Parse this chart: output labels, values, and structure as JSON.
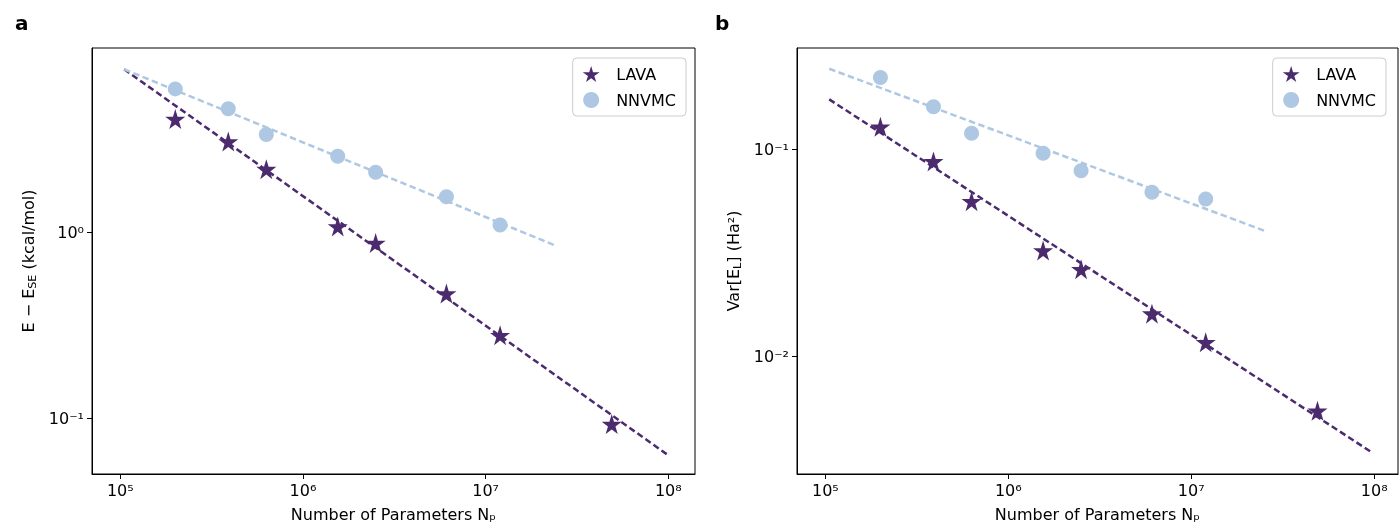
{
  "chart_data": [
    {
      "type": "scatter",
      "title": "a",
      "xlabel": "Number of Parameters Nₚ",
      "ylabel": "E − E$_{SE}$ (kcal/mol)",
      "log": "xy",
      "grid": false,
      "legend": "top right",
      "xlim": [
        70000,
        140000000
      ],
      "ylim": [
        0.05,
        9.9
      ],
      "xticks": [
        {
          "value": 100000,
          "label": "10⁵"
        },
        {
          "value": 1000000,
          "label": "10⁶"
        },
        {
          "value": 10000000,
          "label": "10⁷"
        },
        {
          "value": 100000000,
          "label": "10⁸"
        }
      ],
      "yticks": [
        {
          "value": 0.1,
          "label": "10⁻¹"
        },
        {
          "value": 1,
          "label": "10⁰"
        }
      ],
      "series": [
        {
          "name": "LAVA",
          "marker": "star",
          "color": "#4b2a6e",
          "x": [
            200000,
            390000,
            630000,
            1550000,
            2500000,
            6100000,
            12000000,
            49000000
          ],
          "values": [
            4.1,
            3.1,
            2.2,
            1.08,
            0.88,
            0.47,
            0.28,
            0.093
          ]
        },
        {
          "name": "NNVMC",
          "marker": "circle",
          "color": "#aec7e3",
          "x": [
            200000,
            390000,
            630000,
            1550000,
            2500000,
            6100000,
            12000000
          ],
          "values": [
            5.96,
            4.66,
            3.38,
            2.58,
            2.12,
            1.56,
            1.1
          ]
        },
        {
          "type": "line",
          "marker": "none",
          "line_style": "dashed",
          "color": "#4b2a6e",
          "x": [
            105000,
            98000000
          ],
          "values": [
            7.6,
            0.064
          ]
        },
        {
          "type": "line",
          "marker": "none",
          "line_style": "dashed",
          "color": "#aec7e3",
          "x": [
            105000,
            23600000
          ],
          "values": [
            7.6,
            0.86
          ]
        }
      ]
    },
    {
      "type": "scatter",
      "title": "b",
      "xlabel": "Number of Parameters Nₚ",
      "ylabel": "Var[E$_{L}$] (Ha²)",
      "log": "xy",
      "grid": false,
      "legend": "top right",
      "xlim": [
        70000,
        135000000
      ],
      "ylim": [
        0.0027,
        0.31
      ],
      "xticks": [
        {
          "value": 100000,
          "label": "10⁵"
        },
        {
          "value": 1000000,
          "label": "10⁶"
        },
        {
          "value": 10000000,
          "label": "10⁷"
        },
        {
          "value": 100000000,
          "label": "10⁸"
        }
      ],
      "yticks": [
        {
          "value": 0.01,
          "label": "10⁻²"
        },
        {
          "value": 0.1,
          "label": "10⁻¹"
        }
      ],
      "series": [
        {
          "name": "LAVA",
          "marker": "star",
          "color": "#4b2a6e",
          "x": [
            200000,
            390000,
            630000,
            1550000,
            2500000,
            6100000,
            12000000,
            49000000
          ],
          "values": [
            0.129,
            0.0877,
            0.0563,
            0.0325,
            0.0264,
            0.0161,
            0.0117,
            0.00546
          ]
        },
        {
          "name": "NNVMC",
          "marker": "circle",
          "color": "#aec7e3",
          "x": [
            200000,
            390000,
            630000,
            1550000,
            2500000,
            6100000,
            12000000
          ],
          "values": [
            0.223,
            0.161,
            0.12,
            0.096,
            0.079,
            0.0622,
            0.0577
          ]
        },
        {
          "type": "line",
          "marker": "none",
          "line_style": "dashed",
          "color": "#4b2a6e",
          "x": [
            105000,
            95000000
          ],
          "values": [
            0.175,
            0.00348
          ]
        },
        {
          "type": "line",
          "marker": "none",
          "line_style": "dashed",
          "color": "#aec7e3",
          "x": [
            105000,
            25000000
          ],
          "values": [
            0.246,
            0.0406
          ]
        }
      ]
    }
  ]
}
